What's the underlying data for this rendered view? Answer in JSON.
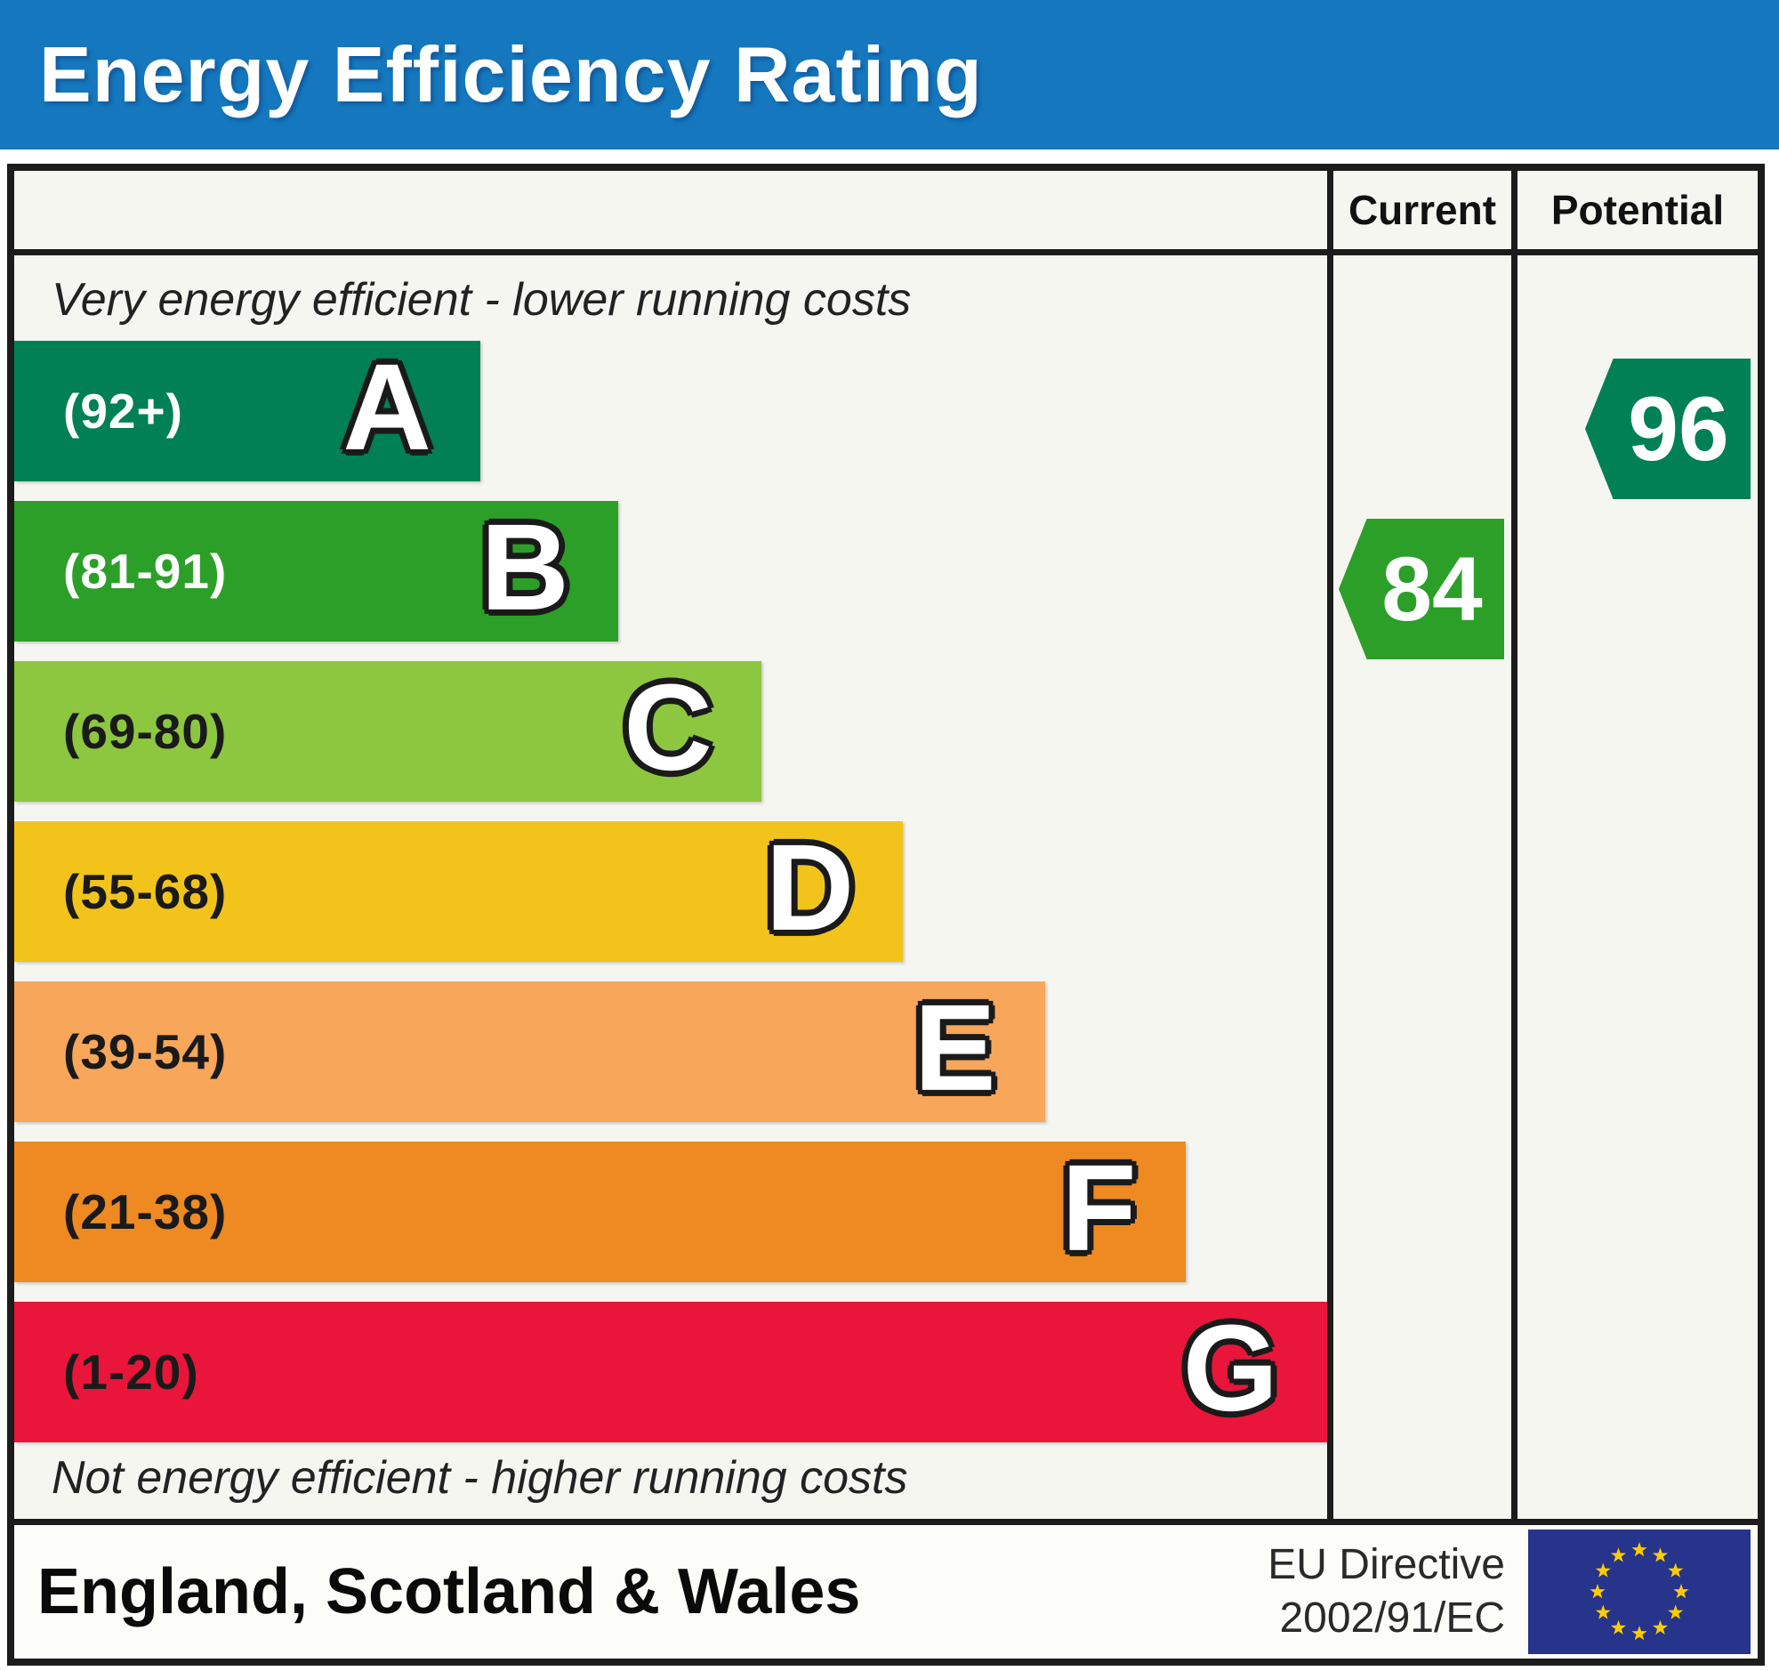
{
  "title_bar": {
    "title": "Energy Efficiency Rating",
    "bg_color": "#1577bd",
    "text_color": "#ffffff"
  },
  "table_header": {
    "current_label": "Current",
    "potential_label": "Potential"
  },
  "notes": {
    "top": "Very energy efficient - lower running costs",
    "bottom": "Not energy efficient - higher running costs"
  },
  "bands": [
    {
      "letter": "A",
      "range_label": "(92+)",
      "color": "#008054",
      "width_pct": 35.5,
      "range_text_color": "#ffffff"
    },
    {
      "letter": "B",
      "range_label": "(81-91)",
      "color": "#2c9f29",
      "width_pct": 46.0,
      "range_text_color": "#ffffff"
    },
    {
      "letter": "C",
      "range_label": "(69-80)",
      "color": "#8dc63f",
      "width_pct": 56.9,
      "range_text_color": "#1a1a1a"
    },
    {
      "letter": "D",
      "range_label": "(55-68)",
      "color": "#f2c41b",
      "width_pct": 67.7,
      "range_text_color": "#1a1a1a"
    },
    {
      "letter": "E",
      "range_label": "(39-54)",
      "color": "#f7a65a",
      "width_pct": 78.5,
      "range_text_color": "#1a1a1a"
    },
    {
      "letter": "F",
      "range_label": "(21-38)",
      "color": "#ee8a21",
      "width_pct": 89.2,
      "range_text_color": "#1a1a1a"
    },
    {
      "letter": "G",
      "range_label": "(1-20)",
      "color": "#e9153b",
      "width_pct": 100.0,
      "range_text_color": "#1a1a1a"
    }
  ],
  "ratings": {
    "current": {
      "value": "84",
      "band": "B",
      "band_row": 1,
      "color": "#2c9f29"
    },
    "potential": {
      "value": "96",
      "band": "A",
      "band_row": 0,
      "color": "#008054"
    }
  },
  "footer": {
    "region_label": "England, Scotland & Wales",
    "directive_line1": "EU Directive",
    "directive_line2": "2002/91/EC",
    "flag_icon": "eu-flag-icon",
    "flag_bg": "#26348b",
    "flag_star_color": "#ffcc00"
  },
  "colors": {
    "border": "#1c1c1c",
    "chart_bg": "#f6f6f1",
    "footer_bg": "#fcfcf9",
    "page_bg": "#ffffff",
    "band_letter_fill": "#ffffff",
    "band_letter_outline": "#1a1a1a"
  },
  "chart_data": {
    "type": "bar",
    "orientation": "horizontal",
    "title": "Energy Efficiency Rating",
    "categories": [
      "A",
      "B",
      "C",
      "D",
      "E",
      "F",
      "G"
    ],
    "category_score_ranges": [
      "92+",
      "81-91",
      "69-80",
      "55-68",
      "39-54",
      "21-38",
      "1-20"
    ],
    "bar_lengths_pct_of_chart_width": [
      35.5,
      46.0,
      56.9,
      67.7,
      78.5,
      89.2,
      100.0
    ],
    "bar_colors": [
      "#008054",
      "#2c9f29",
      "#8dc63f",
      "#f2c41b",
      "#f7a65a",
      "#ee8a21",
      "#e9153b"
    ],
    "markers": [
      {
        "name": "Current",
        "value": 84,
        "band": "B",
        "color": "#2c9f29"
      },
      {
        "name": "Potential",
        "value": 96,
        "band": "A",
        "color": "#008054"
      }
    ],
    "columns": [
      "Current",
      "Potential"
    ],
    "annotations": [
      "Very energy efficient - lower running costs",
      "Not energy efficient - higher running costs"
    ],
    "footer_text": [
      "England, Scotland & Wales",
      "EU Directive 2002/91/EC"
    ],
    "legend_position": "none",
    "grid": false
  }
}
